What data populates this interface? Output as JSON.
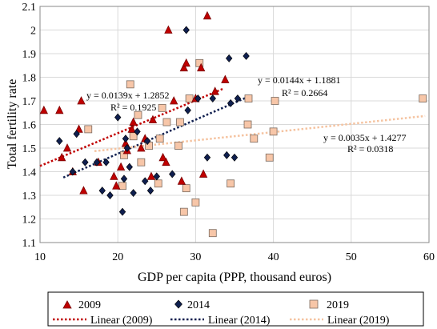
{
  "chart_data": {
    "type": "scatter",
    "xlabel": "GDP per capita (PPP, thousand euros)",
    "ylabel": "Total fertility rate",
    "xlim": [
      10,
      60
    ],
    "ylim": [
      1.1,
      2.1
    ],
    "xticks": [
      10,
      20,
      30,
      40,
      50,
      60
    ],
    "yticks": [
      1.1,
      1.2,
      1.3,
      1.4,
      1.5,
      1.6,
      1.7,
      1.8,
      1.9,
      2,
      2.1
    ],
    "grid": "major",
    "legend_placement": "bottom",
    "series": [
      {
        "name": "2009",
        "marker": "triangle",
        "color": "#c00000",
        "points": [
          [
            10.5,
            1.66
          ],
          [
            12.5,
            1.66
          ],
          [
            12.8,
            1.46
          ],
          [
            13.5,
            1.5
          ],
          [
            14.2,
            1.4
          ],
          [
            15.0,
            1.58
          ],
          [
            15.3,
            1.7
          ],
          [
            15.6,
            1.32
          ],
          [
            17.5,
            1.44
          ],
          [
            19.5,
            1.38
          ],
          [
            19.8,
            1.34
          ],
          [
            20.4,
            1.42
          ],
          [
            21.0,
            1.52
          ],
          [
            21.2,
            1.49
          ],
          [
            21.8,
            1.58
          ],
          [
            22.0,
            1.61
          ],
          [
            23.0,
            1.5
          ],
          [
            23.5,
            1.54
          ],
          [
            24.3,
            1.38
          ],
          [
            24.5,
            1.62
          ],
          [
            25.8,
            1.46
          ],
          [
            26.2,
            1.44
          ],
          [
            26.5,
            2.0
          ],
          [
            27.2,
            1.7
          ],
          [
            28.2,
            1.36
          ],
          [
            28.5,
            1.84
          ],
          [
            28.8,
            1.86
          ],
          [
            30.0,
            1.71
          ],
          [
            30.7,
            1.84
          ],
          [
            31.0,
            1.39
          ],
          [
            31.5,
            2.06
          ],
          [
            32.5,
            1.74
          ],
          [
            33.8,
            1.79
          ]
        ]
      },
      {
        "name": "2014",
        "marker": "diamond",
        "color": "#0f1f4f",
        "points": [
          [
            12.5,
            1.53
          ],
          [
            14.2,
            1.4
          ],
          [
            14.7,
            1.56
          ],
          [
            15.8,
            1.44
          ],
          [
            17.3,
            1.44
          ],
          [
            18.0,
            1.32
          ],
          [
            18.5,
            1.44
          ],
          [
            19.0,
            1.3
          ],
          [
            20.0,
            1.63
          ],
          [
            20.6,
            1.23
          ],
          [
            20.8,
            1.37
          ],
          [
            21.0,
            1.54
          ],
          [
            21.2,
            1.5
          ],
          [
            21.5,
            1.42
          ],
          [
            22.0,
            1.31
          ],
          [
            22.5,
            1.57
          ],
          [
            23.5,
            1.36
          ],
          [
            23.8,
            1.53
          ],
          [
            24.2,
            1.32
          ],
          [
            25.0,
            1.38
          ],
          [
            27.0,
            1.39
          ],
          [
            28.8,
            2.0
          ],
          [
            29.0,
            1.66
          ],
          [
            30.3,
            1.71
          ],
          [
            31.5,
            1.46
          ],
          [
            32.2,
            1.71
          ],
          [
            34.0,
            1.47
          ],
          [
            34.3,
            1.88
          ],
          [
            34.5,
            1.69
          ],
          [
            35.0,
            1.46
          ],
          [
            35.4,
            1.71
          ],
          [
            36.5,
            1.89
          ]
        ]
      },
      {
        "name": "2019",
        "marker": "square",
        "color": "#f7c6a8",
        "points": [
          [
            16.2,
            1.58
          ],
          [
            20.6,
            1.34
          ],
          [
            20.8,
            1.47
          ],
          [
            21.6,
            1.77
          ],
          [
            22.0,
            1.55
          ],
          [
            22.6,
            1.64
          ],
          [
            23.0,
            1.44
          ],
          [
            24.0,
            1.51
          ],
          [
            25.2,
            1.35
          ],
          [
            25.4,
            1.54
          ],
          [
            25.7,
            1.67
          ],
          [
            26.3,
            1.61
          ],
          [
            27.8,
            1.51
          ],
          [
            28.0,
            1.61
          ],
          [
            28.5,
            1.23
          ],
          [
            28.8,
            1.33
          ],
          [
            29.2,
            1.71
          ],
          [
            30.0,
            1.27
          ],
          [
            30.5,
            1.86
          ],
          [
            32.2,
            1.14
          ],
          [
            34.5,
            1.35
          ],
          [
            36.7,
            1.6
          ],
          [
            36.8,
            1.71
          ],
          [
            37.5,
            1.54
          ],
          [
            39.5,
            1.46
          ],
          [
            40.0,
            1.57
          ],
          [
            40.2,
            1.7
          ],
          [
            59.2,
            1.71
          ]
        ]
      }
    ],
    "trendlines": [
      {
        "name": "Linear (2009)",
        "color": "#c00000",
        "slope": 0.0139,
        "intercept": 1.2852,
        "x_range": [
          10,
          33.5
        ],
        "equation": "y = 0.0139x + 1.2852",
        "r2": "R² = 0.1925"
      },
      {
        "name": "Linear (2014)",
        "color": "#0f1f4f",
        "slope": 0.0144,
        "intercept": 1.1881,
        "x_range": [
          13,
          36.5
        ],
        "equation": "y = 0.0144x + 1.1881",
        "r2": "R² = 0.2664"
      },
      {
        "name": "Linear (2019)",
        "color": "#f5c3a0",
        "slope": 0.0035,
        "intercept": 1.4277,
        "x_range": [
          17,
          59.5
        ],
        "equation": "y = 0.0035x + 1.4277",
        "r2": "R² = 0.0318"
      }
    ]
  }
}
